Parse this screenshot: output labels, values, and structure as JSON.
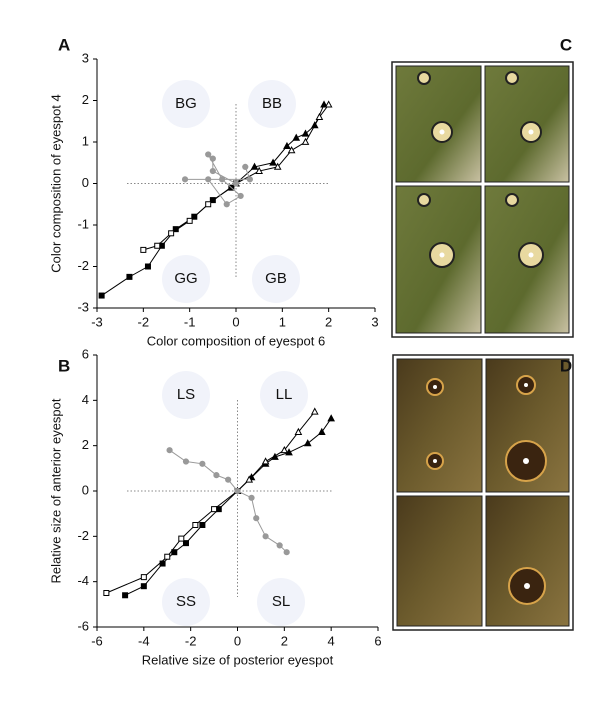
{
  "chart_data": [
    {
      "type": "line",
      "panel_label": "A",
      "xlabel": "Color composition of eyespot 6",
      "ylabel": "Color composition of eyespot 4",
      "xlim": [
        -3,
        3
      ],
      "ylim": [
        -3,
        3
      ],
      "xticks": [
        -3,
        -2,
        -1,
        0,
        1,
        2,
        3
      ],
      "yticks": [
        -3,
        -2,
        -1,
        0,
        1,
        2,
        3
      ],
      "zero_lines": true,
      "annotations": [
        "BG",
        "BB",
        "GG",
        "GB"
      ],
      "series": [
        {
          "color": "#000000",
          "marker": "square",
          "filled": true,
          "x": [
            -0.1,
            -0.5,
            -0.9,
            -1.3,
            -1.6,
            -1.9,
            -2.3,
            -2.9
          ],
          "values": [
            -0.1,
            -0.4,
            -0.8,
            -1.1,
            -1.5,
            -2.0,
            -2.25,
            -2.7
          ]
        },
        {
          "color": "#000000",
          "marker": "square",
          "filled": false,
          "x": [
            0,
            -0.6,
            -1.0,
            -1.4,
            -1.7,
            -2.0
          ],
          "values": [
            0,
            -0.5,
            -0.9,
            -1.2,
            -1.5,
            -1.6
          ]
        },
        {
          "color": "#000000",
          "marker": "triangle",
          "filled": true,
          "x": [
            0,
            0.4,
            0.8,
            1.1,
            1.3,
            1.5,
            1.7,
            1.9
          ],
          "values": [
            0,
            0.4,
            0.5,
            0.9,
            1.1,
            1.2,
            1.4,
            1.9
          ]
        },
        {
          "color": "#000000",
          "marker": "triangle",
          "filled": false,
          "x": [
            0,
            0.5,
            0.9,
            1.2,
            1.5,
            1.8,
            2.0
          ],
          "values": [
            0,
            0.3,
            0.4,
            0.8,
            1.0,
            1.6,
            1.9
          ]
        },
        {
          "color": "#999999",
          "marker": "circle",
          "filled": true,
          "x": [
            0,
            -0.5,
            -0.5,
            -0.6,
            -0.3,
            0.1,
            -0.2,
            -0.6,
            -1.1,
            0.3,
            0.2
          ],
          "values": [
            0,
            0.3,
            0.6,
            0.7,
            0.1,
            -0.3,
            -0.5,
            0.1,
            0.1,
            0.1,
            0.4
          ]
        }
      ]
    },
    {
      "type": "line",
      "panel_label": "B",
      "xlabel": "Relative size of posterior eyespot",
      "ylabel": "Relative size of anterior eyespot",
      "xlim": [
        -6,
        6
      ],
      "ylim": [
        -6,
        6
      ],
      "xticks": [
        -6,
        -4,
        -2,
        0,
        2,
        4,
        6
      ],
      "yticks": [
        -6,
        -4,
        -2,
        0,
        2,
        4,
        6
      ],
      "zero_lines": true,
      "annotations": [
        "LS",
        "LL",
        "SS",
        "SL"
      ],
      "series": [
        {
          "color": "#000000",
          "marker": "triangle",
          "filled": true,
          "x": [
            0,
            0.6,
            1.2,
            1.6,
            2.2,
            3.0,
            3.6,
            4.0
          ],
          "values": [
            0,
            0.6,
            1.2,
            1.5,
            1.7,
            2.1,
            2.6,
            3.2
          ]
        },
        {
          "color": "#000000",
          "marker": "triangle",
          "filled": false,
          "x": [
            0,
            0.5,
            1.2,
            2.0,
            2.6,
            3.3
          ],
          "values": [
            0,
            0.5,
            1.3,
            1.8,
            2.6,
            3.5
          ]
        },
        {
          "color": "#000000",
          "marker": "square",
          "filled": true,
          "x": [
            0,
            -0.8,
            -1.5,
            -2.2,
            -2.7,
            -3.2,
            -4.0,
            -4.8
          ],
          "values": [
            0,
            -0.8,
            -1.5,
            -2.3,
            -2.7,
            -3.2,
            -4.2,
            -4.6
          ]
        },
        {
          "color": "#000000",
          "marker": "square",
          "filled": false,
          "x": [
            0,
            -1.0,
            -1.8,
            -2.4,
            -3.0,
            -4.0,
            -5.6
          ],
          "values": [
            0,
            -0.8,
            -1.5,
            -2.1,
            -2.9,
            -3.8,
            -4.5
          ]
        },
        {
          "color": "#999999",
          "marker": "circle",
          "filled": true,
          "x": [
            -2.9,
            -2.2,
            -1.5,
            -0.9,
            -0.4,
            0,
            0.6,
            0.8,
            1.2,
            1.8,
            2.1
          ],
          "values": [
            1.8,
            1.3,
            1.2,
            0.7,
            0.5,
            0,
            -0.3,
            -1.2,
            -2.0,
            -2.4,
            -2.7
          ]
        }
      ]
    }
  ],
  "figures": [
    {
      "panel_label": "C"
    },
    {
      "panel_label": "D"
    }
  ]
}
